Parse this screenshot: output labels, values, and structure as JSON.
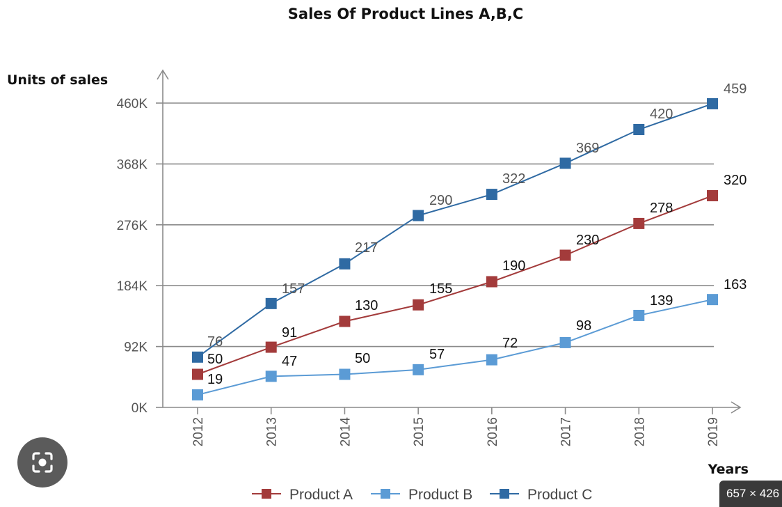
{
  "chart_data": {
    "type": "line",
    "title": "Sales Of Product Lines A,B,C",
    "ylabel": "Units of sales",
    "xlabel": "Years",
    "categories": [
      "2012",
      "2013",
      "2014",
      "2015",
      "2016",
      "2017",
      "2018",
      "2019"
    ],
    "ylim": [
      0,
      460
    ],
    "yticks": [
      0,
      92,
      184,
      276,
      368,
      460
    ],
    "ytick_labels": [
      "0K",
      "92K",
      "184K",
      "276K",
      "368K",
      "460K"
    ],
    "grid": true,
    "legend_position": "bottom",
    "series": [
      {
        "name": "Product A",
        "color": "#a33b3b",
        "label_color": "#111111",
        "values": [
          50,
          91,
          130,
          155,
          190,
          230,
          278,
          320
        ]
      },
      {
        "name": "Product B",
        "color": "#5b9bd5",
        "label_color": "#111111",
        "values": [
          19,
          47,
          50,
          57,
          72,
          98,
          139,
          163
        ]
      },
      {
        "name": "Product C",
        "color": "#2f6aa3",
        "label_color": "#555555",
        "values": [
          76,
          157,
          217,
          290,
          322,
          369,
          420,
          459
        ]
      }
    ]
  },
  "overlay": {
    "lens_icon": "camera-search-icon",
    "size_badge": "657 × 426"
  }
}
